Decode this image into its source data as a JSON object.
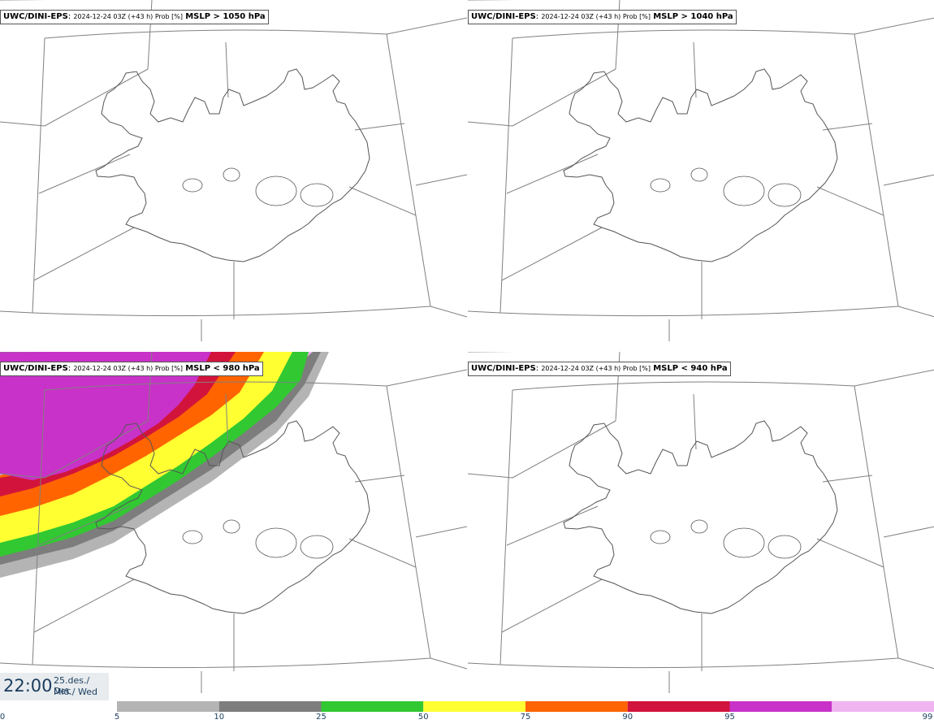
{
  "panels": [
    {
      "model": "UWC/DINI-EPS",
      "run": "2024-12-24 03Z (+43 h) Prob [%]",
      "threshold": "MSLP > 1050 hPa",
      "field": "none"
    },
    {
      "model": "UWC/DINI-EPS",
      "run": "2024-12-24 03Z (+43 h) Prob [%]",
      "threshold": "MSLP > 1040 hPa",
      "field": "none"
    },
    {
      "model": "UWC/DINI-EPS",
      "run": "2024-12-24 03Z (+43 h) Prob [%]",
      "threshold": "MSLP < 980 hPa",
      "field": "bands"
    },
    {
      "model": "UWC/DINI-EPS",
      "run": "2024-12-24 03Z (+43 h) Prob [%]",
      "threshold": "MSLP < 940 hPa",
      "field": "none"
    }
  ],
  "valid_time": {
    "time": "22:00",
    "date": "25.des./ Dec",
    "weekday": "Mið./ Wed"
  },
  "colorbar": {
    "ticks": [
      "0",
      "5",
      "10",
      "25",
      "50",
      "75",
      "90",
      "95",
      "99"
    ],
    "colors": [
      "#ffffff",
      "#b4b4b4",
      "#7d7d7d",
      "#32c832",
      "#ffff32",
      "#ff6400",
      "#d2143c",
      "#c832c8",
      "#f0b4f0"
    ]
  }
}
